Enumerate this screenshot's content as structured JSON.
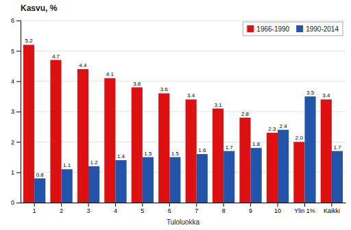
{
  "chart_data": {
    "type": "bar",
    "title": "Kasvu, %",
    "x_label": "Tuloluokka",
    "categories": [
      "1",
      "2",
      "3",
      "4",
      "5",
      "6",
      "7",
      "8",
      "9",
      "10",
      "Ylin 1%",
      "Kaikki"
    ],
    "series": [
      {
        "name": "1966-1990",
        "color": "#dd1111",
        "values": [
          5.2,
          4.7,
          4.4,
          4.1,
          3.8,
          3.6,
          3.4,
          3.1,
          2.8,
          2.3,
          2.0,
          3.4
        ],
        "value_labels": [
          "5.2",
          "4.7",
          "4.4",
          "4.1",
          "3.8",
          "3.6",
          "3.4",
          "3.1",
          "2.8",
          "2.3",
          "2.0",
          "3.4"
        ]
      },
      {
        "name": "1990-2014",
        "color": "#2255aa",
        "values": [
          0.8,
          1.1,
          1.2,
          1.4,
          1.5,
          1.5,
          1.6,
          1.7,
          1.8,
          2.4,
          3.5,
          1.7
        ]
      }
    ],
    "ylim": [
      0,
      6
    ],
    "yticks": [
      0,
      1,
      2,
      3,
      4,
      5,
      6
    ],
    "grid": true,
    "legend": "upper right",
    "data_labels": true
  }
}
